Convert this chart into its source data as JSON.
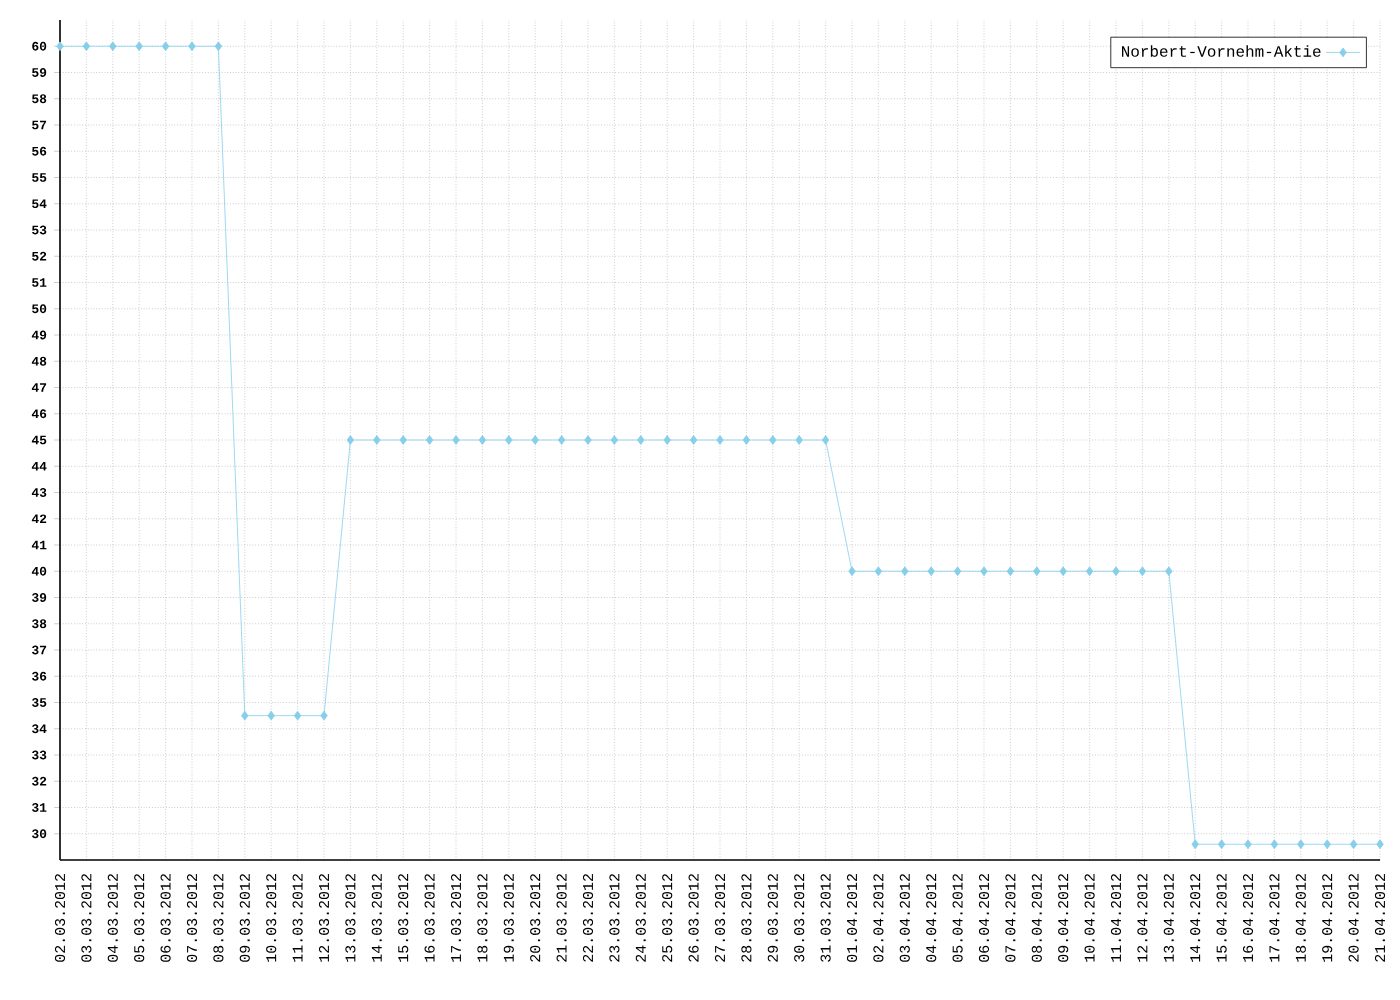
{
  "chart_data": {
    "type": "line",
    "categories": [
      "02.03.2012",
      "03.03.2012",
      "04.03.2012",
      "05.03.2012",
      "06.03.2012",
      "07.03.2012",
      "08.03.2012",
      "09.03.2012",
      "10.03.2012",
      "11.03.2012",
      "12.03.2012",
      "13.03.2012",
      "14.03.2012",
      "15.03.2012",
      "16.03.2012",
      "17.03.2012",
      "18.03.2012",
      "19.03.2012",
      "20.03.2012",
      "21.03.2012",
      "22.03.2012",
      "23.03.2012",
      "24.03.2012",
      "25.03.2012",
      "26.03.2012",
      "27.03.2012",
      "28.03.2012",
      "29.03.2012",
      "30.03.2012",
      "31.03.2012",
      "01.04.2012",
      "02.04.2012",
      "03.04.2012",
      "04.04.2012",
      "05.04.2012",
      "06.04.2012",
      "07.04.2012",
      "08.04.2012",
      "09.04.2012",
      "10.04.2012",
      "11.04.2012",
      "12.04.2012",
      "13.04.2012",
      "14.04.2012",
      "15.04.2012",
      "16.04.2012",
      "17.04.2012",
      "18.04.2012",
      "19.04.2012",
      "20.04.2012",
      "21.04.2012"
    ],
    "series": [
      {
        "name": "Norbert-Vornehm-Aktie",
        "color": "#87ceeb",
        "values": [
          60,
          60,
          60,
          60,
          60,
          60,
          60,
          34.5,
          34.5,
          34.5,
          34.5,
          45,
          45,
          45,
          45,
          45,
          45,
          45,
          45,
          45,
          45,
          45,
          45,
          45,
          45,
          45,
          45,
          45,
          45,
          45,
          40,
          40,
          40,
          40,
          40,
          40,
          40,
          40,
          40,
          40,
          40,
          40,
          40,
          29.6,
          29.6,
          29.6,
          29.6,
          29.6,
          29.6,
          29.6,
          29.6
        ]
      }
    ],
    "ylim": [
      29,
      61
    ],
    "yticks": [
      30,
      31,
      32,
      33,
      34,
      35,
      36,
      37,
      38,
      39,
      40,
      41,
      42,
      43,
      44,
      45,
      46,
      47,
      48,
      49,
      50,
      51,
      52,
      53,
      54,
      55,
      56,
      57,
      58,
      59,
      60
    ],
    "grid": true,
    "legend": "top right",
    "marker": "diamond",
    "line_style": "solid"
  }
}
